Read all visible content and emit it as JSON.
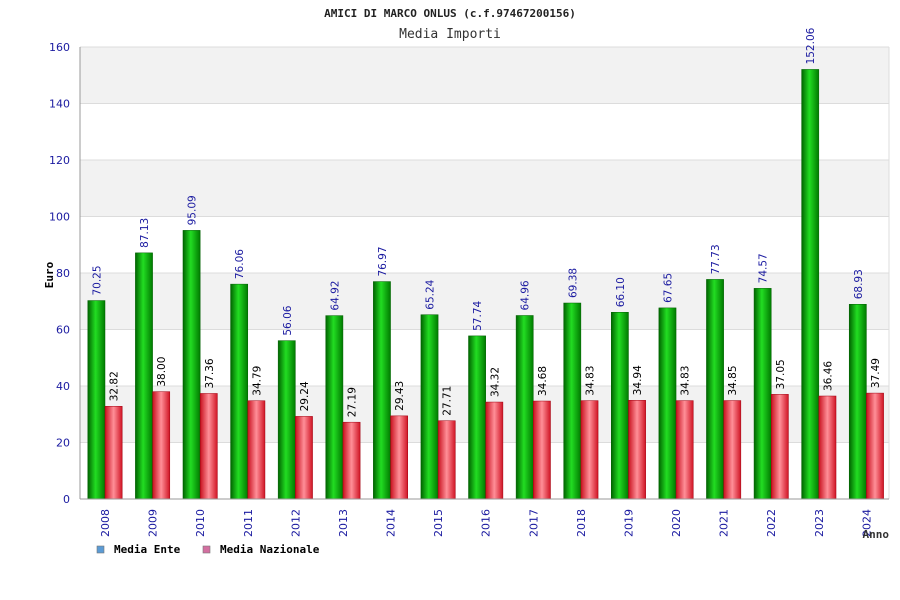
{
  "chart_data": {
    "type": "bar",
    "title": "AMICI DI MARCO ONLUS (c.f.97467200156)",
    "subtitle": "Media Importi",
    "xlabel": "Anno",
    "ylabel": "Euro",
    "ylim": [
      0,
      160
    ],
    "yticks": [
      0,
      20,
      40,
      60,
      80,
      100,
      120,
      140,
      160
    ],
    "grid": true,
    "legend_position": "bottom-left",
    "categories": [
      "2008",
      "2009",
      "2010",
      "2011",
      "2012",
      "2013",
      "2014",
      "2015",
      "2016",
      "2017",
      "2018",
      "2019",
      "2020",
      "2021",
      "2022",
      "2023",
      "2024"
    ],
    "series": [
      {
        "name": "Media Ente",
        "color": "#10b010",
        "legend_color": "#5b9bd5",
        "values": [
          70.25,
          87.13,
          95.09,
          76.06,
          56.06,
          64.92,
          76.97,
          65.24,
          57.74,
          64.96,
          69.38,
          66.1,
          67.65,
          77.73,
          74.57,
          152.06,
          68.93
        ],
        "labels": [
          "70.25",
          "87.13",
          "95.09",
          "76.06",
          "56.06",
          "64.92",
          "76.97",
          "65.24",
          "57.74",
          "64.96",
          "69.38",
          "66.10",
          "67.65",
          "77.73",
          "74.57",
          "152.06",
          "68.93"
        ]
      },
      {
        "name": "Media Nazionale",
        "color": "#e02030",
        "legend_color": "#d36fa0",
        "values": [
          32.82,
          38.0,
          37.36,
          34.79,
          29.24,
          27.19,
          29.43,
          27.71,
          34.32,
          34.68,
          34.83,
          34.94,
          34.83,
          34.85,
          37.05,
          36.46,
          37.49
        ],
        "labels": [
          "32.82",
          "38.00",
          "37.36",
          "34.79",
          "29.24",
          "27.19",
          "29.43",
          "27.71",
          "34.32",
          "34.68",
          "34.83",
          "34.94",
          "34.83",
          "34.85",
          "37.05",
          "36.46",
          "37.49"
        ]
      }
    ]
  }
}
